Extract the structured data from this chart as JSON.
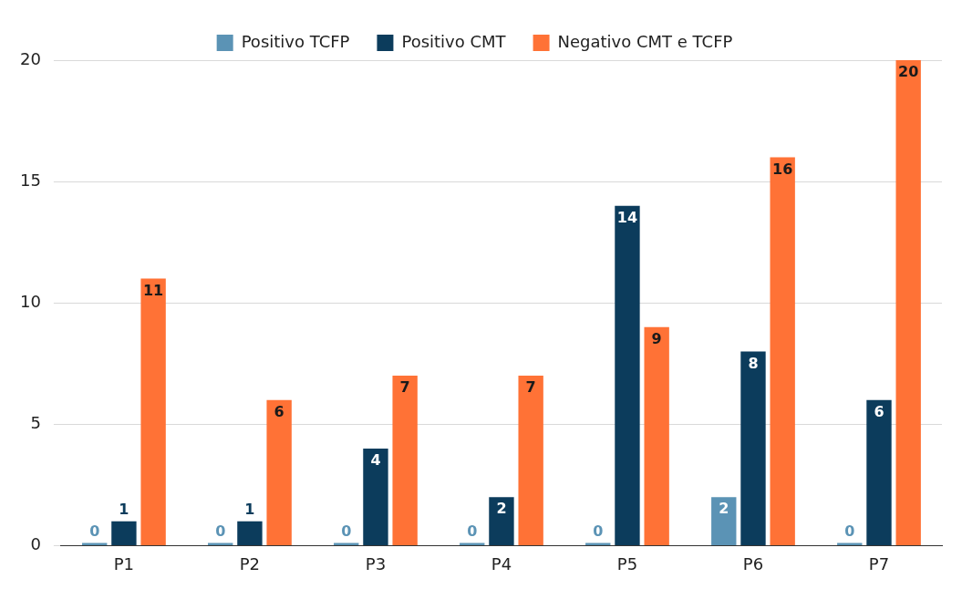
{
  "chart_data": {
    "type": "bar",
    "categories": [
      "P1",
      "P2",
      "P3",
      "P4",
      "P5",
      "P6",
      "P7"
    ],
    "series": [
      {
        "name": "Positivo TCFP",
        "color": "#5b93b5",
        "values": [
          0,
          0,
          0,
          0,
          0,
          2,
          0
        ]
      },
      {
        "name": "Positivo CMT",
        "color": "#0c3c5c",
        "values": [
          1,
          1,
          4,
          2,
          14,
          8,
          6
        ]
      },
      {
        "name": "Negativo CMT e TCFP",
        "color": "#ff7236",
        "values": [
          11,
          6,
          7,
          7,
          9,
          16,
          20
        ]
      }
    ],
    "ylim": [
      0,
      20
    ],
    "yticks": [
      0,
      5,
      10,
      15,
      20
    ],
    "grid": "y",
    "legend": "top",
    "data_labels": true
  }
}
